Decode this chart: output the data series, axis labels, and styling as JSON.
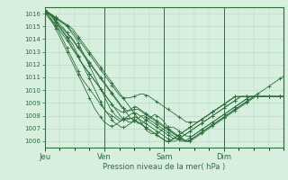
{
  "title": "",
  "xlabel": "Pression niveau de la mer( hPa )",
  "ylabel": "",
  "bg_color": "#d8efe0",
  "grid_color": "#b0d8bc",
  "line_color": "#2d6e3a",
  "text_color": "#2d6e3a",
  "ylim": [
    1005.5,
    1016.5
  ],
  "yticks": [
    1006,
    1007,
    1008,
    1009,
    1010,
    1011,
    1012,
    1013,
    1014,
    1015,
    1016
  ],
  "xtick_labels": [
    "Jeu",
    "Ven",
    "Sam",
    "Dim"
  ],
  "xtick_positions": [
    0,
    32,
    64,
    96
  ],
  "xlim": [
    0,
    128
  ],
  "num_points": 129,
  "series": [
    [
      1016.2,
      1016.1,
      1016.0,
      1015.9,
      1015.8,
      1015.6,
      1015.4,
      1015.2,
      1015.0,
      1014.9,
      1014.8,
      1014.6,
      1014.5,
      1014.3,
      1014.2,
      1014.0,
      1013.8,
      1013.6,
      1013.4,
      1013.2,
      1013.0,
      1012.8,
      1012.6,
      1012.4,
      1012.2,
      1012.0,
      1011.8,
      1011.6,
      1011.4,
      1011.2,
      1011.0,
      1010.8,
      1010.6,
      1010.4,
      1010.2,
      1010.0,
      1009.8,
      1009.6,
      1009.4,
      1009.2,
      1009.0,
      1008.8,
      1008.6,
      1008.4,
      1008.2,
      1008.0,
      1007.8,
      1007.7,
      1007.6,
      1007.5,
      1007.4,
      1007.4,
      1007.4,
      1007.5,
      1007.6,
      1007.7,
      1007.8,
      1007.9,
      1008.0,
      1008.1,
      1008.0,
      1007.9,
      1007.8,
      1007.7,
      1007.5,
      1007.3,
      1007.1,
      1006.9,
      1006.7,
      1006.6,
      1006.5,
      1006.4,
      1006.3,
      1006.2,
      1006.1,
      1006.0,
      1006.0,
      1006.0,
      1006.1,
      1006.2,
      1006.3,
      1006.4,
      1006.5,
      1006.6,
      1006.7,
      1006.8,
      1006.9,
      1007.0,
      1007.1,
      1007.2,
      1007.3,
      1007.4,
      1007.5,
      1007.6,
      1007.7,
      1007.8,
      1007.9,
      1008.0,
      1008.1,
      1008.2,
      1008.3,
      1008.4,
      1008.5,
      1008.6,
      1008.7,
      1008.8,
      1008.9,
      1009.0,
      1009.1,
      1009.2,
      1009.3,
      1009.4,
      1009.5,
      1009.6,
      1009.7,
      1009.8,
      1009.9,
      1010.0,
      1010.1,
      1010.2,
      1010.3,
      1010.4,
      1010.5,
      1010.6,
      1010.7,
      1010.8,
      1010.9,
      1011.0,
      1011.1
    ],
    [
      1016.1,
      1016.0,
      1015.9,
      1015.7,
      1015.5,
      1015.3,
      1015.1,
      1014.9,
      1014.7,
      1014.5,
      1014.3,
      1014.1,
      1013.9,
      1013.7,
      1013.4,
      1013.2,
      1013.0,
      1012.8,
      1012.6,
      1012.3,
      1012.1,
      1011.9,
      1011.7,
      1011.5,
      1011.3,
      1011.1,
      1010.9,
      1010.7,
      1010.5,
      1010.3,
      1010.1,
      1009.9,
      1009.7,
      1009.5,
      1009.3,
      1009.1,
      1008.9,
      1008.7,
      1008.5,
      1008.3,
      1008.1,
      1007.9,
      1007.8,
      1007.7,
      1007.6,
      1007.5,
      1007.5,
      1007.5,
      1007.6,
      1007.7,
      1007.8,
      1007.9,
      1008.0,
      1008.0,
      1007.9,
      1007.8,
      1007.7,
      1007.6,
      1007.5,
      1007.4,
      1007.3,
      1007.2,
      1007.1,
      1007.0,
      1006.9,
      1006.8,
      1006.7,
      1006.6,
      1006.5,
      1006.4,
      1006.3,
      1006.2,
      1006.1,
      1006.0,
      1006.0,
      1006.0,
      1006.1,
      1006.2,
      1006.3,
      1006.4,
      1006.5,
      1006.6,
      1006.7,
      1006.8,
      1006.9,
      1007.0,
      1007.1,
      1007.2,
      1007.3,
      1007.4,
      1007.5,
      1007.6,
      1007.7,
      1007.8,
      1007.9,
      1008.0,
      1008.1,
      1008.2,
      1008.3,
      1008.4,
      1008.5,
      1008.6,
      1008.7,
      1008.8,
      1008.9,
      1009.0,
      1009.1,
      1009.2,
      1009.3,
      1009.4,
      1009.5,
      1009.5,
      1009.5,
      1009.5,
      1009.5,
      1009.5,
      1009.5,
      1009.5,
      1009.5,
      1009.5,
      1009.5,
      1009.5,
      1009.5,
      1009.5,
      1009.5,
      1009.5,
      1009.5,
      1009.5,
      1009.5
    ],
    [
      1016.3,
      1016.2,
      1016.1,
      1016.0,
      1015.9,
      1015.8,
      1015.7,
      1015.6,
      1015.5,
      1015.4,
      1015.3,
      1015.2,
      1015.0,
      1014.9,
      1014.7,
      1014.6,
      1014.4,
      1014.2,
      1014.0,
      1013.8,
      1013.6,
      1013.4,
      1013.2,
      1013.0,
      1012.8,
      1012.6,
      1012.4,
      1012.2,
      1012.0,
      1011.8,
      1011.6,
      1011.4,
      1011.2,
      1011.0,
      1010.8,
      1010.6,
      1010.4,
      1010.2,
      1010.0,
      1009.8,
      1009.6,
      1009.5,
      1009.4,
      1009.4,
      1009.4,
      1009.4,
      1009.4,
      1009.5,
      1009.5,
      1009.6,
      1009.6,
      1009.7,
      1009.7,
      1009.7,
      1009.6,
      1009.6,
      1009.5,
      1009.4,
      1009.3,
      1009.2,
      1009.1,
      1009.0,
      1008.9,
      1008.8,
      1008.7,
      1008.6,
      1008.5,
      1008.4,
      1008.3,
      1008.2,
      1008.1,
      1008.0,
      1007.9,
      1007.8,
      1007.7,
      1007.6,
      1007.5,
      1007.5,
      1007.5,
      1007.5,
      1007.5,
      1007.5,
      1007.5,
      1007.6,
      1007.7,
      1007.8,
      1007.9,
      1008.0,
      1008.1,
      1008.2,
      1008.3,
      1008.4,
      1008.5,
      1008.6,
      1008.7,
      1008.8,
      1008.9,
      1009.0,
      1009.1,
      1009.2,
      1009.3,
      1009.4,
      1009.5,
      1009.5,
      1009.5,
      1009.5,
      1009.5,
      1009.5,
      1009.5,
      1009.5,
      1009.5,
      1009.5,
      1009.5,
      1009.5,
      1009.5,
      1009.5,
      1009.5,
      1009.5,
      1009.5,
      1009.5,
      1009.5,
      1009.5,
      1009.5,
      1009.5,
      1009.5,
      1009.5,
      1009.5,
      1009.5,
      1009.5
    ],
    [
      1016.0,
      1015.9,
      1015.8,
      1015.6,
      1015.4,
      1015.2,
      1015.0,
      1014.8,
      1014.5,
      1014.2,
      1013.9,
      1013.6,
      1013.3,
      1013.0,
      1012.7,
      1012.4,
      1012.1,
      1011.8,
      1011.5,
      1011.2,
      1010.9,
      1010.7,
      1010.5,
      1010.3,
      1010.1,
      1009.9,
      1009.7,
      1009.5,
      1009.3,
      1009.1,
      1008.9,
      1008.7,
      1008.5,
      1008.3,
      1008.2,
      1008.1,
      1008.0,
      1007.9,
      1007.8,
      1007.7,
      1007.6,
      1007.6,
      1007.7,
      1007.8,
      1007.9,
      1008.0,
      1008.1,
      1008.2,
      1008.2,
      1008.2,
      1008.1,
      1008.0,
      1007.9,
      1007.8,
      1007.7,
      1007.6,
      1007.5,
      1007.4,
      1007.3,
      1007.2,
      1007.1,
      1007.0,
      1006.9,
      1006.8,
      1006.7,
      1006.6,
      1006.5,
      1006.4,
      1006.3,
      1006.2,
      1006.2,
      1006.2,
      1006.2,
      1006.3,
      1006.4,
      1006.5,
      1006.6,
      1006.7,
      1006.8,
      1006.9,
      1007.0,
      1007.1,
      1007.2,
      1007.3,
      1007.4,
      1007.5,
      1007.6,
      1007.7,
      1007.8,
      1007.9,
      1008.0,
      1008.1,
      1008.2,
      1008.3,
      1008.4,
      1008.5,
      1008.6,
      1008.7,
      1008.8,
      1008.9,
      1009.0,
      1009.1,
      1009.2,
      1009.3,
      1009.4,
      1009.5,
      1009.5,
      1009.5,
      1009.5,
      1009.5,
      1009.5,
      1009.5,
      1009.5,
      1009.5,
      1009.5,
      1009.5,
      1009.5,
      1009.5,
      1009.5,
      1009.5,
      1009.5,
      1009.5,
      1009.5,
      1009.5,
      1009.5,
      1009.5,
      1009.5,
      1009.5,
      1009.5
    ],
    [
      1016.2,
      1016.1,
      1016.0,
      1015.9,
      1015.8,
      1015.7,
      1015.5,
      1015.3,
      1015.2,
      1015.0,
      1014.9,
      1014.7,
      1014.5,
      1014.3,
      1014.1,
      1013.9,
      1013.7,
      1013.5,
      1013.3,
      1013.1,
      1012.9,
      1012.7,
      1012.5,
      1012.3,
      1012.1,
      1011.9,
      1011.7,
      1011.5,
      1011.3,
      1011.1,
      1010.9,
      1010.7,
      1010.5,
      1010.3,
      1010.1,
      1009.9,
      1009.7,
      1009.5,
      1009.3,
      1009.1,
      1008.9,
      1008.7,
      1008.6,
      1008.5,
      1008.4,
      1008.4,
      1008.4,
      1008.4,
      1008.5,
      1008.5,
      1008.5,
      1008.4,
      1008.3,
      1008.2,
      1008.1,
      1008.0,
      1007.9,
      1007.8,
      1007.7,
      1007.6,
      1007.5,
      1007.4,
      1007.3,
      1007.2,
      1007.1,
      1007.0,
      1006.9,
      1006.8,
      1006.7,
      1006.6,
      1006.5,
      1006.4,
      1006.3,
      1006.2,
      1006.1,
      1006.0,
      1006.0,
      1006.0,
      1006.1,
      1006.2,
      1006.3,
      1006.4,
      1006.5,
      1006.6,
      1006.7,
      1006.8,
      1006.9,
      1007.0,
      1007.1,
      1007.2,
      1007.3,
      1007.4,
      1007.5,
      1007.6,
      1007.7,
      1007.8,
      1007.9,
      1008.0,
      1008.1,
      1008.2,
      1008.3,
      1008.4,
      1008.5,
      1008.6,
      1008.7,
      1008.8,
      1008.9,
      1009.0,
      1009.1,
      1009.2,
      1009.3,
      1009.4,
      1009.5,
      1009.5,
      1009.5,
      1009.5,
      1009.5,
      1009.5,
      1009.5,
      1009.5,
      1009.5,
      1009.5,
      1009.5,
      1009.5,
      1009.5,
      1009.5,
      1009.5,
      1009.5,
      1009.5
    ],
    [
      1016.2,
      1016.1,
      1016.0,
      1015.9,
      1015.7,
      1015.5,
      1015.3,
      1015.1,
      1014.9,
      1014.7,
      1014.5,
      1014.3,
      1014.1,
      1013.8,
      1013.6,
      1013.3,
      1013.1,
      1012.8,
      1012.6,
      1012.3,
      1012.1,
      1011.9,
      1011.7,
      1011.5,
      1011.3,
      1011.1,
      1010.9,
      1010.7,
      1010.5,
      1010.3,
      1010.1,
      1009.9,
      1009.7,
      1009.5,
      1009.3,
      1009.1,
      1008.9,
      1008.7,
      1008.6,
      1008.5,
      1008.4,
      1008.3,
      1008.3,
      1008.3,
      1008.3,
      1008.4,
      1008.5,
      1008.6,
      1008.7,
      1008.7,
      1008.6,
      1008.5,
      1008.4,
      1008.3,
      1008.2,
      1008.1,
      1008.0,
      1007.9,
      1007.8,
      1007.7,
      1007.6,
      1007.5,
      1007.4,
      1007.3,
      1007.2,
      1007.1,
      1007.0,
      1006.9,
      1006.8,
      1006.7,
      1006.6,
      1006.5,
      1006.4,
      1006.3,
      1006.2,
      1006.1,
      1006.0,
      1006.0,
      1006.0,
      1006.1,
      1006.2,
      1006.3,
      1006.4,
      1006.5,
      1006.6,
      1006.7,
      1006.8,
      1006.9,
      1007.0,
      1007.1,
      1007.2,
      1007.3,
      1007.4,
      1007.5,
      1007.6,
      1007.7,
      1007.8,
      1007.9,
      1008.0,
      1008.1,
      1008.2,
      1008.3,
      1008.4,
      1008.5,
      1008.6,
      1008.7,
      1008.8,
      1008.9,
      1009.0,
      1009.1,
      1009.2,
      1009.3,
      1009.4,
      1009.5,
      1009.5,
      1009.5,
      1009.5,
      1009.5,
      1009.5,
      1009.5,
      1009.5,
      1009.5,
      1009.5,
      1009.5,
      1009.5,
      1009.5,
      1009.5,
      1009.5,
      1009.5
    ],
    [
      1016.1,
      1015.9,
      1015.7,
      1015.5,
      1015.3,
      1015.1,
      1014.8,
      1014.5,
      1014.2,
      1013.9,
      1013.6,
      1013.3,
      1013.0,
      1012.7,
      1012.4,
      1012.1,
      1011.8,
      1011.5,
      1011.2,
      1010.9,
      1010.6,
      1010.3,
      1010.0,
      1009.7,
      1009.4,
      1009.1,
      1008.8,
      1008.5,
      1008.3,
      1008.1,
      1007.9,
      1007.7,
      1007.5,
      1007.4,
      1007.3,
      1007.2,
      1007.2,
      1007.2,
      1007.3,
      1007.4,
      1007.5,
      1007.6,
      1007.7,
      1007.8,
      1007.8,
      1007.8,
      1007.8,
      1007.8,
      1007.7,
      1007.6,
      1007.5,
      1007.4,
      1007.3,
      1007.2,
      1007.1,
      1007.0,
      1006.9,
      1006.8,
      1006.7,
      1006.6,
      1006.5,
      1006.4,
      1006.3,
      1006.2,
      1006.1,
      1006.0,
      1006.0,
      1006.0,
      1006.1,
      1006.2,
      1006.3,
      1006.4,
      1006.5,
      1006.6,
      1006.7,
      1006.8,
      1006.9,
      1007.0,
      1007.1,
      1007.2,
      1007.3,
      1007.4,
      1007.5,
      1007.6,
      1007.7,
      1007.8,
      1007.9,
      1008.0,
      1008.1,
      1008.2,
      1008.3,
      1008.4,
      1008.5,
      1008.6,
      1008.7,
      1008.8,
      1008.9,
      1009.0,
      1009.1,
      1009.2,
      1009.3,
      1009.4,
      1009.5,
      1009.5,
      1009.5,
      1009.5,
      1009.5,
      1009.5,
      1009.5,
      1009.5,
      1009.5,
      1009.5,
      1009.5,
      1009.5,
      1009.5,
      1009.5,
      1009.5,
      1009.5,
      1009.5,
      1009.5,
      1009.5,
      1009.5,
      1009.5,
      1009.5,
      1009.5,
      1009.5,
      1009.5,
      1009.5,
      1009.5
    ],
    [
      1016.2,
      1016.1,
      1016.0,
      1015.9,
      1015.8,
      1015.6,
      1015.4,
      1015.2,
      1015.0,
      1014.8,
      1014.6,
      1014.4,
      1014.2,
      1014.0,
      1013.8,
      1013.6,
      1013.3,
      1013.0,
      1012.7,
      1012.4,
      1012.1,
      1011.8,
      1011.5,
      1011.2,
      1010.9,
      1010.6,
      1010.3,
      1010.0,
      1009.7,
      1009.4,
      1009.1,
      1008.8,
      1008.5,
      1008.3,
      1008.1,
      1007.9,
      1007.7,
      1007.5,
      1007.4,
      1007.3,
      1007.2,
      1007.1,
      1007.1,
      1007.1,
      1007.2,
      1007.3,
      1007.4,
      1007.5,
      1007.6,
      1007.6,
      1007.5,
      1007.4,
      1007.3,
      1007.2,
      1007.1,
      1007.0,
      1006.9,
      1006.8,
      1006.7,
      1006.6,
      1006.5,
      1006.4,
      1006.3,
      1006.2,
      1006.1,
      1006.0,
      1006.0,
      1006.0,
      1006.1,
      1006.2,
      1006.3,
      1006.4,
      1006.5,
      1006.6,
      1006.7,
      1006.8,
      1006.9,
      1007.0,
      1007.1,
      1007.2,
      1007.3,
      1007.4,
      1007.5,
      1007.6,
      1007.7,
      1007.8,
      1007.9,
      1008.0,
      1008.1,
      1008.2,
      1008.3,
      1008.4,
      1008.5,
      1008.6,
      1008.7,
      1008.8,
      1008.9,
      1009.0,
      1009.1,
      1009.2,
      1009.3,
      1009.4,
      1009.5,
      1009.5,
      1009.5,
      1009.5,
      1009.5,
      1009.5,
      1009.5,
      1009.5,
      1009.5,
      1009.5,
      1009.5,
      1009.5,
      1009.5,
      1009.5,
      1009.5,
      1009.5,
      1009.5,
      1009.5,
      1009.5,
      1009.5,
      1009.5,
      1009.5,
      1009.5,
      1009.5,
      1009.5,
      1009.5,
      1009.5
    ],
    [
      1016.3,
      1016.2,
      1016.1,
      1016.0,
      1015.9,
      1015.8,
      1015.7,
      1015.6,
      1015.5,
      1015.4,
      1015.3,
      1015.2,
      1015.1,
      1015.0,
      1014.9,
      1014.8,
      1014.6,
      1014.4,
      1014.2,
      1014.0,
      1013.8,
      1013.6,
      1013.4,
      1013.2,
      1013.0,
      1012.8,
      1012.6,
      1012.4,
      1012.2,
      1012.0,
      1011.8,
      1011.6,
      1011.4,
      1011.2,
      1011.0,
      1010.8,
      1010.6,
      1010.4,
      1010.2,
      1010.0,
      1009.8,
      1009.6,
      1009.4,
      1009.2,
      1009.0,
      1008.8,
      1008.6,
      1008.4,
      1008.2,
      1008.0,
      1007.8,
      1007.6,
      1007.4,
      1007.2,
      1007.0,
      1006.8,
      1006.7,
      1006.6,
      1006.6,
      1006.6,
      1006.6,
      1006.7,
      1006.8,
      1006.9,
      1007.0,
      1007.1,
      1007.1,
      1007.1,
      1007.1,
      1007.1,
      1007.0,
      1006.9,
      1006.8,
      1006.7,
      1006.6,
      1006.5,
      1006.4,
      1006.4,
      1006.4,
      1006.4,
      1006.5,
      1006.6,
      1006.7,
      1006.8,
      1006.9,
      1007.0,
      1007.1,
      1007.2,
      1007.3,
      1007.4,
      1007.5,
      1007.6,
      1007.7,
      1007.8,
      1007.9,
      1008.0,
      1008.1,
      1008.2,
      1008.3,
      1008.4,
      1008.5,
      1008.6,
      1008.7,
      1008.8,
      1008.9,
      1009.0,
      1009.1,
      1009.2,
      1009.3,
      1009.4,
      1009.5,
      1009.5,
      1009.5,
      1009.5,
      1009.5,
      1009.5,
      1009.5,
      1009.5,
      1009.5,
      1009.5,
      1009.5,
      1009.5,
      1009.5,
      1009.5,
      1009.5,
      1009.5,
      1009.5,
      1009.5,
      1009.5
    ],
    [
      1016.2,
      1016.1,
      1016.0,
      1015.9,
      1015.8,
      1015.7,
      1015.6,
      1015.5,
      1015.4,
      1015.3,
      1015.2,
      1015.1,
      1015.0,
      1014.8,
      1014.6,
      1014.4,
      1014.2,
      1014.0,
      1013.7,
      1013.4,
      1013.1,
      1012.8,
      1012.5,
      1012.2,
      1011.9,
      1011.6,
      1011.3,
      1011.0,
      1010.7,
      1010.4,
      1010.1,
      1009.8,
      1009.5,
      1009.2,
      1008.9,
      1008.6,
      1008.4,
      1008.2,
      1008.0,
      1007.9,
      1007.8,
      1007.7,
      1007.7,
      1007.7,
      1007.7,
      1007.7,
      1007.8,
      1007.8,
      1007.9,
      1007.9,
      1007.8,
      1007.7,
      1007.6,
      1007.5,
      1007.4,
      1007.3,
      1007.2,
      1007.1,
      1007.0,
      1006.9,
      1006.8,
      1006.7,
      1006.6,
      1006.5,
      1006.4,
      1006.3,
      1006.2,
      1006.1,
      1006.0,
      1006.0,
      1006.0,
      1006.1,
      1006.2,
      1006.3,
      1006.4,
      1006.5,
      1006.6,
      1006.7,
      1006.8,
      1006.9,
      1007.0,
      1007.1,
      1007.2,
      1007.3,
      1007.4,
      1007.5,
      1007.6,
      1007.7,
      1007.8,
      1007.9,
      1008.0,
      1008.1,
      1008.2,
      1008.3,
      1008.4,
      1008.5,
      1008.6,
      1008.7,
      1008.8,
      1008.9,
      1009.0,
      1009.1,
      1009.2,
      1009.3,
      1009.4,
      1009.5,
      1009.5,
      1009.5,
      1009.5,
      1009.5,
      1009.5,
      1009.5,
      1009.5,
      1009.5,
      1009.5,
      1009.5,
      1009.5,
      1009.5,
      1009.5,
      1009.5,
      1009.5,
      1009.5,
      1009.5,
      1009.5,
      1009.5,
      1009.5,
      1009.5,
      1009.5,
      1009.5
    ]
  ]
}
